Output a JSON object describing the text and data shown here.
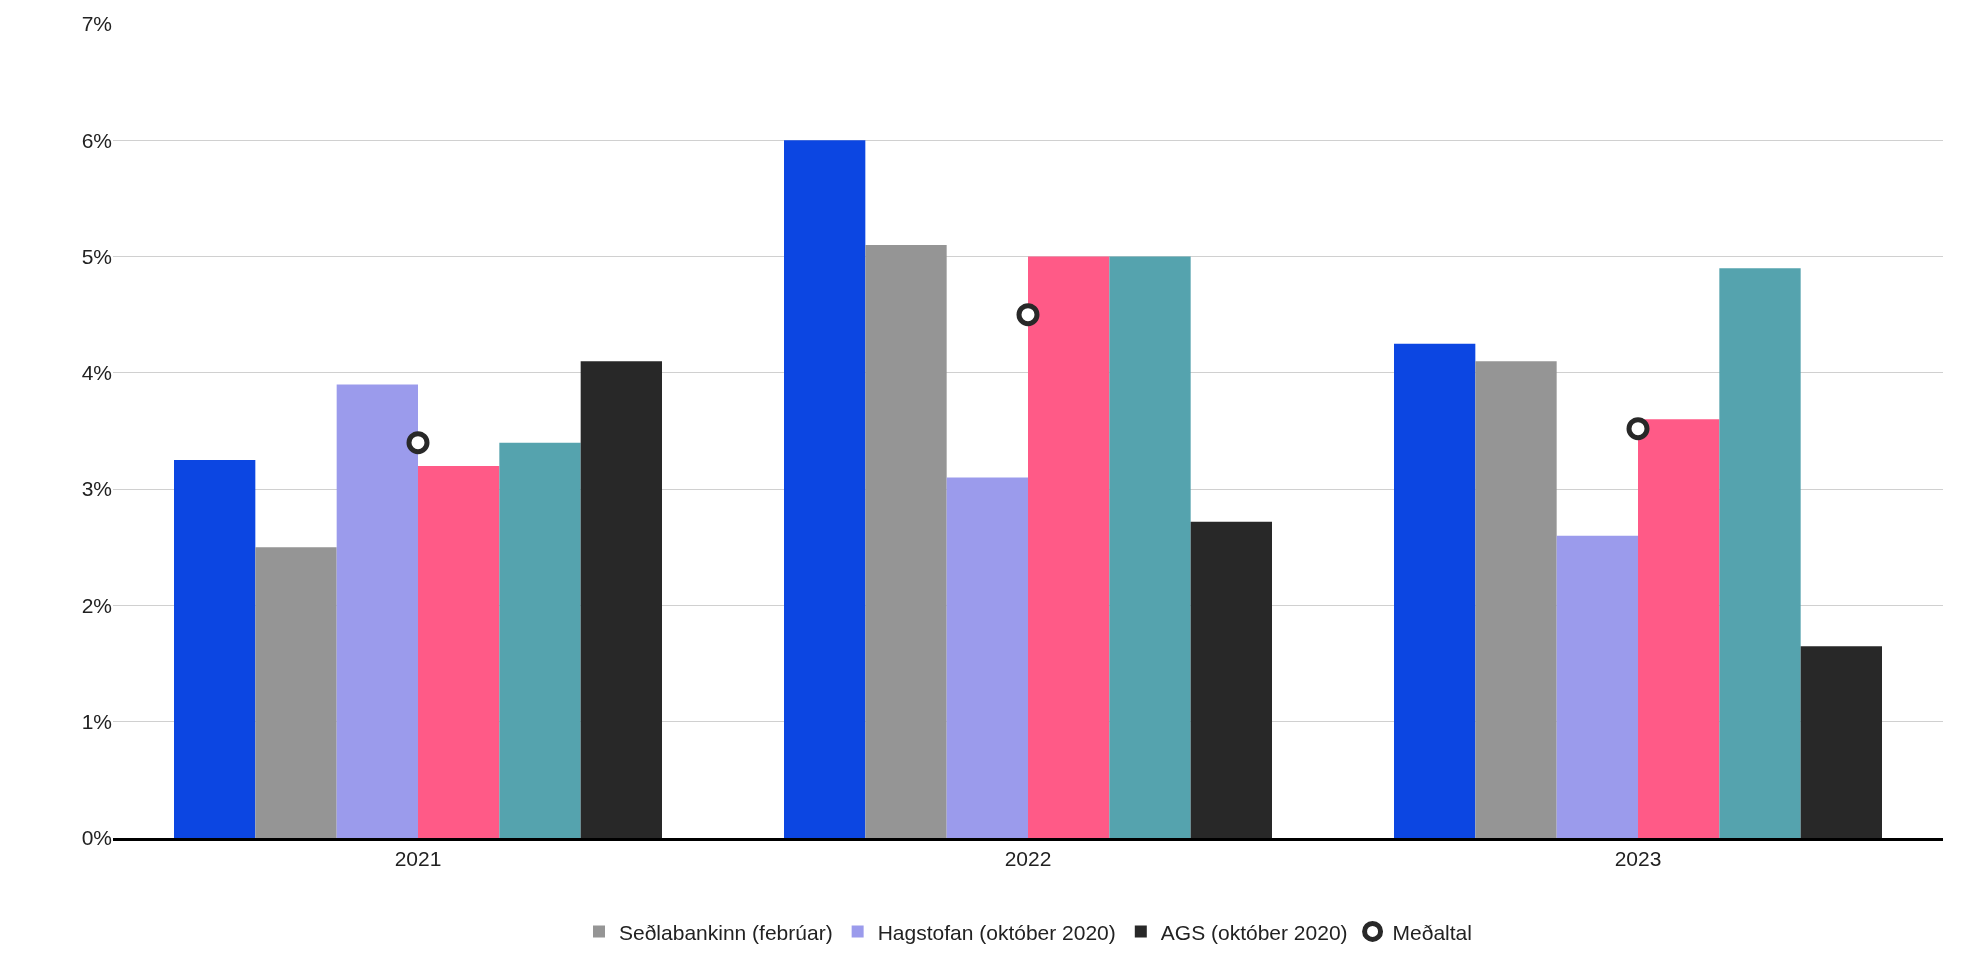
{
  "chart_data": {
    "type": "bar",
    "categories": [
      "2021",
      "2022",
      "2023"
    ],
    "series": [
      {
        "color": "#0c46e2",
        "values": [
          3.25,
          6.0,
          4.25
        ]
      },
      {
        "name": "Seðlabankinn (febrúar)",
        "color": "#959595",
        "values": [
          2.5,
          5.1,
          4.1
        ]
      },
      {
        "name": "Hagstofan (október 2020)",
        "color": "#9b9bec",
        "values": [
          3.9,
          3.1,
          2.6
        ]
      },
      {
        "color": "#ff5a87",
        "values": [
          3.2,
          5.0,
          3.6
        ]
      },
      {
        "color": "#55a3ae",
        "values": [
          3.4,
          5.0,
          4.9
        ]
      },
      {
        "name": "AGS (október 2020)",
        "color": "#282828",
        "values": [
          4.1,
          2.72,
          1.65
        ]
      },
      {
        "name": "Meðaltal",
        "type": "scatter",
        "marker": "circle",
        "color": "#282828",
        "values": [
          3.4,
          4.5,
          3.52
        ]
      }
    ],
    "ylim": [
      0,
      7
    ],
    "yticks": [
      {
        "value": 0,
        "label": "0%"
      },
      {
        "value": 1,
        "label": "1%"
      },
      {
        "value": 2,
        "label": "2%"
      },
      {
        "value": 3,
        "label": "3%"
      },
      {
        "value": 4,
        "label": "4%"
      },
      {
        "value": 5,
        "label": "5%"
      },
      {
        "value": 6,
        "label": "6%"
      },
      {
        "value": 7,
        "label": "7%"
      }
    ],
    "grid": "y",
    "legend": "bottom"
  }
}
